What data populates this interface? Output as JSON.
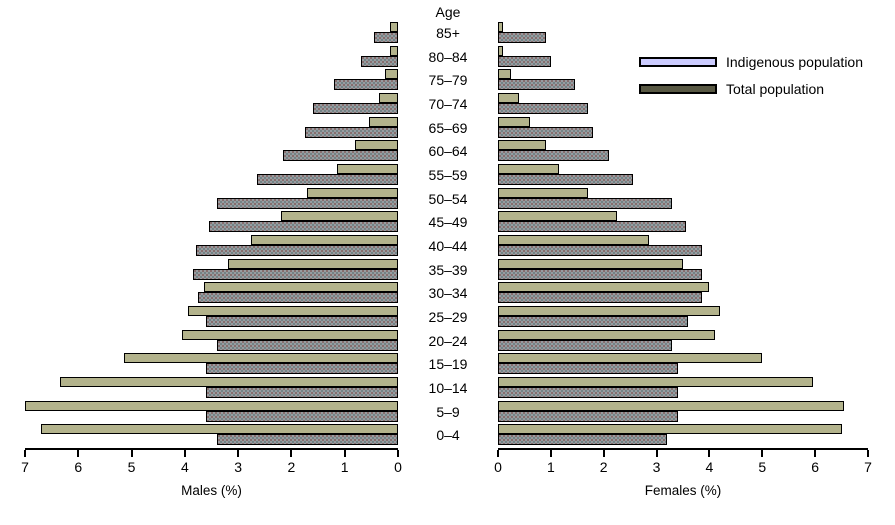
{
  "age_column_title": "Age",
  "legend": [
    {
      "label": "Indigenous population",
      "color": "#ccccff"
    },
    {
      "label": "Total population",
      "color": "#585843"
    }
  ],
  "left_axis": {
    "label": "Males (%)",
    "ticks": [
      "7",
      "6",
      "5",
      "4",
      "3",
      "2",
      "1",
      "0"
    ]
  },
  "right_axis": {
    "label": "Females (%)",
    "ticks": [
      "0",
      "1",
      "2",
      "3",
      "4",
      "5",
      "6",
      "7"
    ]
  },
  "colors": {
    "indigenous_bar": "#b3b38c",
    "total_bar": "#979ca0",
    "bar_border": "#000000",
    "legend_indigenous_swatch": "#ccccff",
    "legend_total_swatch": "#585843"
  },
  "chart_data": {
    "type": "bar",
    "subtype": "population_pyramid",
    "title": "Age",
    "xlabel_left": "Males (%)",
    "xlabel_right": "Females (%)",
    "xlim": [
      0,
      7
    ],
    "grid": false,
    "legend_position": "top-right",
    "categories": [
      "85+",
      "80–84",
      "75–79",
      "70–74",
      "65–69",
      "60–64",
      "55–59",
      "50–54",
      "45–49",
      "40–44",
      "35–39",
      "30–34",
      "25–29",
      "20–24",
      "15–19",
      "10–14",
      "5–9",
      "0–4"
    ],
    "series": [
      {
        "key": "males_indigenous",
        "name": "Males – Indigenous population",
        "values": [
          0.15,
          0.15,
          0.25,
          0.35,
          0.55,
          0.8,
          1.15,
          1.7,
          2.2,
          2.75,
          3.2,
          3.65,
          3.95,
          4.05,
          5.15,
          6.35,
          7.0,
          6.7
        ]
      },
      {
        "key": "males_total",
        "name": "Males – Total population",
        "values": [
          0.45,
          0.7,
          1.2,
          1.6,
          1.75,
          2.15,
          2.65,
          3.4,
          3.55,
          3.8,
          3.85,
          3.75,
          3.6,
          3.4,
          3.6,
          3.6,
          3.6,
          3.4
        ]
      },
      {
        "key": "females_indigenous",
        "name": "Females – Indigenous population",
        "values": [
          0.1,
          0.1,
          0.25,
          0.4,
          0.6,
          0.9,
          1.15,
          1.7,
          2.25,
          2.85,
          3.5,
          4.0,
          4.2,
          4.1,
          5.0,
          5.95,
          6.55,
          6.5
        ]
      },
      {
        "key": "females_total",
        "name": "Females – Total population",
        "values": [
          0.9,
          1.0,
          1.45,
          1.7,
          1.8,
          2.1,
          2.55,
          3.3,
          3.55,
          3.85,
          3.85,
          3.85,
          3.6,
          3.3,
          3.4,
          3.4,
          3.4,
          3.2
        ]
      }
    ]
  }
}
